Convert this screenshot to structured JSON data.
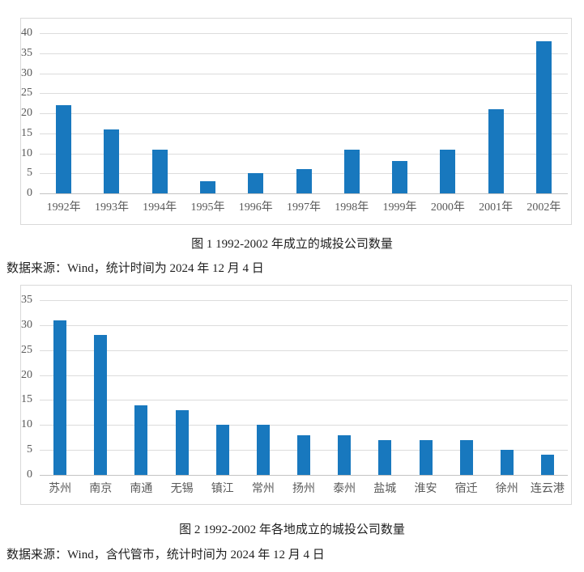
{
  "accent_colors": {
    "bar_blue": "#1878be",
    "gridline_gray": "#dcdcdc",
    "axis_text_gray": "#595959"
  },
  "chart_data": [
    {
      "type": "bar",
      "title": "图 1 1992-2002 年成立的城投公司数量",
      "source": "数据来源：Wind，统计时间为 2024 年 12 月 4 日",
      "categories": [
        "1992年",
        "1993年",
        "1994年",
        "1995年",
        "1996年",
        "1997年",
        "1998年",
        "1999年",
        "2000年",
        "2001年",
        "2002年"
      ],
      "values": [
        22,
        16,
        11,
        3,
        5,
        6,
        11,
        8,
        11,
        21,
        38
      ],
      "xlabel": "",
      "ylabel": "",
      "ylim": [
        0,
        40
      ],
      "yticks": [
        0,
        5,
        10,
        15,
        20,
        25,
        30,
        35,
        40
      ],
      "grid": true,
      "legend": "none",
      "bar_color": "#1878be"
    },
    {
      "type": "bar",
      "title": "图 2 1992-2002 年各地成立的城投公司数量",
      "source": "数据来源：Wind，含代管市，统计时间为 2024 年 12 月 4 日",
      "categories": [
        "苏州",
        "南京",
        "南通",
        "无锡",
        "镇江",
        "常州",
        "扬州",
        "泰州",
        "盐城",
        "淮安",
        "宿迁",
        "徐州",
        "连云港"
      ],
      "values": [
        31,
        28,
        14,
        13,
        10,
        10,
        8,
        8,
        7,
        7,
        7,
        5,
        4
      ],
      "xlabel": "",
      "ylabel": "",
      "ylim": [
        0,
        35
      ],
      "yticks": [
        0,
        5,
        10,
        15,
        20,
        25,
        30,
        35
      ],
      "grid": true,
      "legend": "none",
      "bar_color": "#1878be"
    }
  ]
}
